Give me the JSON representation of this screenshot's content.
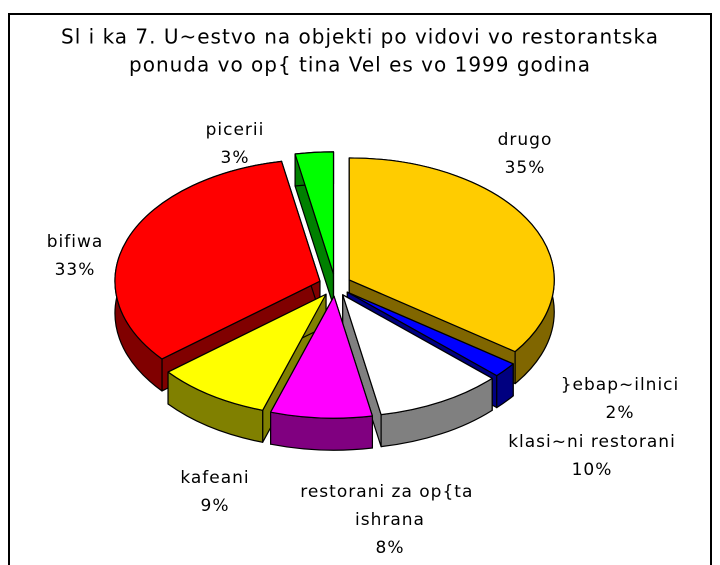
{
  "chart_data": {
    "type": "pie",
    "title": [
      "Sl i ka 7. U~estvo na objekti po vidovi vo restorantska",
      "ponuda vo op{ tina Vel es vo 1999 godina"
    ],
    "categories": [
      "drugo",
      "}ebap~ilnici",
      "klasi~ni restorani",
      "restorani za op{ta ishrana",
      "kafeani",
      "bifiwa",
      "picerii"
    ],
    "values": [
      35,
      2,
      10,
      8,
      9,
      33,
      3
    ],
    "value_labels": [
      "35%",
      "2%",
      "10%",
      "8%",
      "9%",
      "33%",
      "3%"
    ],
    "colors": [
      "#ffcc00",
      "#0000ff",
      "#ffffff",
      "#ff00ff",
      "#ffff00",
      "#ff0000",
      "#00ff00"
    ]
  }
}
